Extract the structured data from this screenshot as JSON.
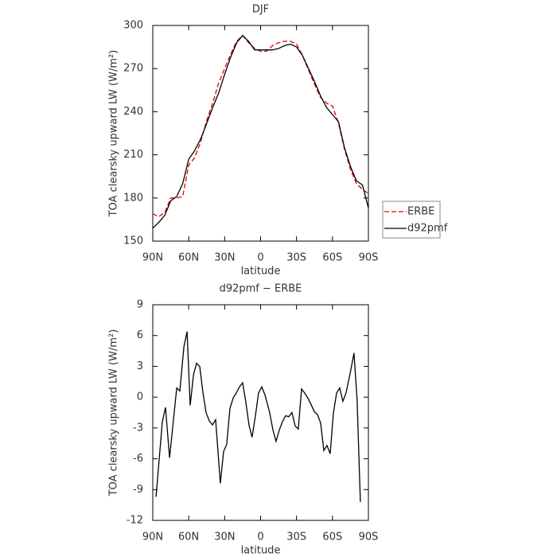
{
  "chart_data": [
    {
      "type": "line",
      "title": "DJF",
      "x_label": "latitude",
      "y_label": "TOA clearsky upward LW (W/m²)",
      "x": [
        90,
        85,
        80,
        75,
        70,
        65,
        60,
        55,
        50,
        45,
        40,
        35,
        30,
        25,
        20,
        15,
        10,
        5,
        0,
        -5,
        -10,
        -15,
        -20,
        -25,
        -30,
        -35,
        -40,
        -45,
        -50,
        -55,
        -60,
        -65,
        -70,
        -75,
        -80,
        -85,
        -90
      ],
      "series": [
        {
          "name": "ERBE",
          "color": "#e00000",
          "line_style": "dashed",
          "values": [
            169,
            167,
            170,
            180,
            180,
            181,
            203,
            208,
            219,
            234,
            246,
            260,
            270,
            280,
            289,
            293,
            288,
            284,
            282,
            282,
            286,
            288,
            289,
            289,
            287,
            279,
            269,
            259,
            250,
            246,
            244,
            232,
            214,
            200,
            190,
            186,
            183
          ]
        },
        {
          "name": "d92pmf",
          "color": "#000000",
          "line_style": "solid",
          "values": [
            159,
            163,
            168,
            178,
            181,
            190,
            207,
            213,
            221,
            232,
            243,
            253,
            266,
            278,
            288,
            293,
            289,
            283,
            283,
            283,
            283,
            284,
            286,
            287,
            285,
            279,
            270,
            261,
            251,
            243,
            238,
            233,
            215,
            202,
            192,
            189,
            173
          ]
        }
      ],
      "xlim": [
        90,
        -90
      ],
      "xticks": [
        {
          "value": 90,
          "label": "90N"
        },
        {
          "value": 60,
          "label": "60N"
        },
        {
          "value": 30,
          "label": "30N"
        },
        0,
        {
          "value": -30,
          "label": "30S"
        },
        {
          "value": -60,
          "label": "60S"
        },
        {
          "value": -90,
          "label": "90S"
        }
      ],
      "ylim": [
        150,
        300
      ],
      "yticks": [
        150,
        180,
        210,
        240,
        270,
        300
      ],
      "legend": "right"
    },
    {
      "type": "line",
      "title": "d92pmf − ERBE",
      "x_label": "latitude",
      "y_label": "TOA clearsky upward LW (W/m²)",
      "x": [
        87.3,
        82,
        79.4,
        76,
        70,
        67.4,
        64,
        61.4,
        58.8,
        56,
        53.5,
        50.8,
        48.1,
        45.5,
        42.9,
        40.2,
        37.5,
        33.6,
        30.9,
        28.3,
        25.6,
        23,
        20.3,
        17.7,
        15,
        12.4,
        9.7,
        7.1,
        4.3,
        1.7,
        -1,
        -3.7,
        -7.6,
        -10.3,
        -12.9,
        -15.6,
        -18.2,
        -20.9,
        -23.5,
        -26.2,
        -28.8,
        -31.5,
        -34.2,
        -36.8,
        -39.5,
        -42.1,
        -44.8,
        -47.5,
        -50.1,
        -52.8,
        -55.4,
        -58.1,
        -60.7,
        -63.4,
        -66,
        -68.7,
        -71.3,
        -74.7,
        -78,
        -80.6,
        -83.3
      ],
      "values": [
        -9.7,
        -2.4,
        -1,
        -5.9,
        0.9,
        0.6,
        4.9,
        6.4,
        -0.8,
        2.2,
        3.3,
        3,
        0.4,
        -1.5,
        -2.3,
        -2.7,
        -2.2,
        -8.4,
        -5.3,
        -4.6,
        -1.1,
        -0.1,
        0.4,
        1,
        1.4,
        -0.4,
        -2.7,
        -3.9,
        -1.8,
        0.4,
        1,
        0.2,
        -1.5,
        -3.2,
        -4.3,
        -3.2,
        -2.4,
        -1.8,
        -1.9,
        -1.5,
        -2.8,
        -3.1,
        0.8,
        0.4,
        -0.1,
        -0.7,
        -1.4,
        -1.7,
        -2.5,
        -5.2,
        -4.7,
        -5.5,
        -1.6,
        0.4,
        0.9,
        -0.4,
        0.4,
        2.3,
        4.3,
        -0.3,
        -10.2
      ],
      "color": "#000000",
      "xlim": [
        90,
        -90
      ],
      "xticks": [
        {
          "value": 90,
          "label": "90N"
        },
        {
          "value": 60,
          "label": "60N"
        },
        {
          "value": 30,
          "label": "30N"
        },
        0,
        {
          "value": -30,
          "label": "30S"
        },
        {
          "value": -60,
          "label": "60S"
        },
        {
          "value": -90,
          "label": "90S"
        }
      ],
      "ylim": [
        -12,
        9
      ],
      "yticks": [
        -12,
        -9,
        -6,
        -3,
        0,
        3,
        6,
        9
      ]
    }
  ]
}
